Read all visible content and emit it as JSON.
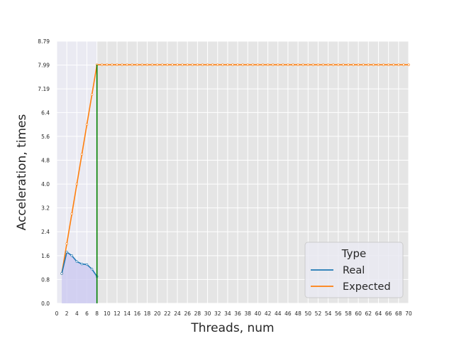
{
  "chart_data": {
    "type": "line",
    "xlabel": "Threads, num",
    "ylabel": "Acceleration, times",
    "xlim": [
      0,
      70
    ],
    "ylim": [
      0,
      8.79
    ],
    "x_ticks": [
      "0",
      "2",
      "4",
      "6",
      "8",
      "10",
      "12",
      "14",
      "16",
      "18",
      "20",
      "22",
      "24",
      "26",
      "28",
      "30",
      "32",
      "34",
      "36",
      "38",
      "40",
      "42",
      "44",
      "46",
      "48",
      "50",
      "52",
      "54",
      "56",
      "58",
      "60",
      "62",
      "64",
      "66",
      "68",
      "70"
    ],
    "y_ticks": [
      "0.0",
      "0.8",
      "1.6",
      "2.4",
      "3.2",
      "4.0",
      "4.8",
      "5.6",
      "6.4",
      "7.19",
      "7.99",
      "8.79"
    ],
    "grid": true,
    "legend": {
      "title": "Type",
      "placement": "lower-right"
    },
    "vline": {
      "x": 8,
      "color": "#008000"
    },
    "series": [
      {
        "name": "Real",
        "color": "#1f77b4",
        "fill": "#c9c7f0",
        "x": [
          1,
          2,
          3,
          4,
          5,
          6,
          7,
          8
        ],
        "y": [
          1.0,
          1.72,
          1.6,
          1.4,
          1.32,
          1.3,
          1.15,
          0.9
        ]
      },
      {
        "name": "Expected",
        "color": "#ff7f0e",
        "x": [
          1,
          2,
          3,
          4,
          5,
          6,
          7,
          8,
          9,
          10,
          11,
          12,
          13,
          14,
          15,
          16,
          17,
          18,
          19,
          20,
          21,
          22,
          23,
          24,
          25,
          26,
          27,
          28,
          29,
          30,
          31,
          32,
          33,
          34,
          35,
          36,
          37,
          38,
          39,
          40,
          41,
          42,
          43,
          44,
          45,
          46,
          47,
          48,
          49,
          50,
          51,
          52,
          53,
          54,
          55,
          56,
          57,
          58,
          59,
          60,
          61,
          62,
          63,
          64,
          65,
          66,
          67,
          68,
          69,
          70
        ],
        "y": [
          1,
          2,
          3,
          4,
          5,
          6,
          7,
          8,
          8,
          8,
          8,
          8,
          8,
          8,
          8,
          8,
          8,
          8,
          8,
          8,
          8,
          8,
          8,
          8,
          8,
          8,
          8,
          8,
          8,
          8,
          8,
          8,
          8,
          8,
          8,
          8,
          8,
          8,
          8,
          8,
          8,
          8,
          8,
          8,
          8,
          8,
          8,
          8,
          8,
          8,
          8,
          8,
          8,
          8,
          8,
          8,
          8,
          8,
          8,
          8,
          8,
          8,
          8,
          8,
          8,
          8,
          8,
          8,
          8,
          8
        ]
      }
    ]
  }
}
